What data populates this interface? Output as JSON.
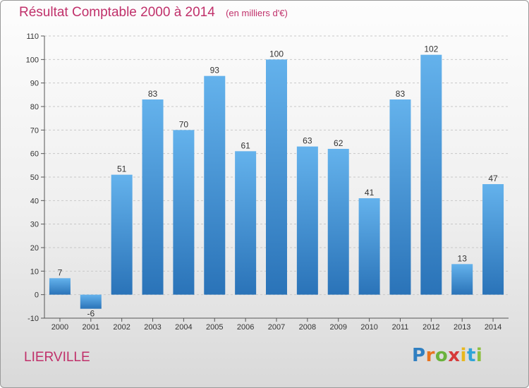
{
  "title": "Résultat Comptable 2000 à 2014",
  "title_unit": "(en milliers d'€)",
  "commune": "LIERVILLE",
  "logo": {
    "letters": [
      "P",
      "r",
      "o",
      "x",
      "i",
      "t",
      "i"
    ],
    "colors": [
      "#2f7fc1",
      "#e8731f",
      "#6ab23d",
      "#d63a3a",
      "#e8b81f",
      "#2fa4d8",
      "#8cbf3f"
    ]
  },
  "colors": {
    "bar_top": "#64b2ec",
    "bar_bottom": "#2a73b8",
    "title": "#c0306a"
  },
  "chart_data": {
    "type": "bar",
    "categories": [
      "2000",
      "2001",
      "2002",
      "2003",
      "2004",
      "2005",
      "2006",
      "2007",
      "2008",
      "2009",
      "2010",
      "2011",
      "2012",
      "2013",
      "2014"
    ],
    "values": [
      7,
      -6,
      51,
      83,
      70,
      93,
      61,
      100,
      63,
      62,
      41,
      83,
      102,
      13,
      47
    ],
    "title": "Résultat Comptable 2000 à 2014",
    "xlabel": "",
    "ylabel": "",
    "ylim": [
      -10,
      110
    ],
    "yticks": [
      -10,
      0,
      10,
      20,
      30,
      40,
      50,
      60,
      70,
      80,
      90,
      100,
      110
    ],
    "grid": true
  }
}
